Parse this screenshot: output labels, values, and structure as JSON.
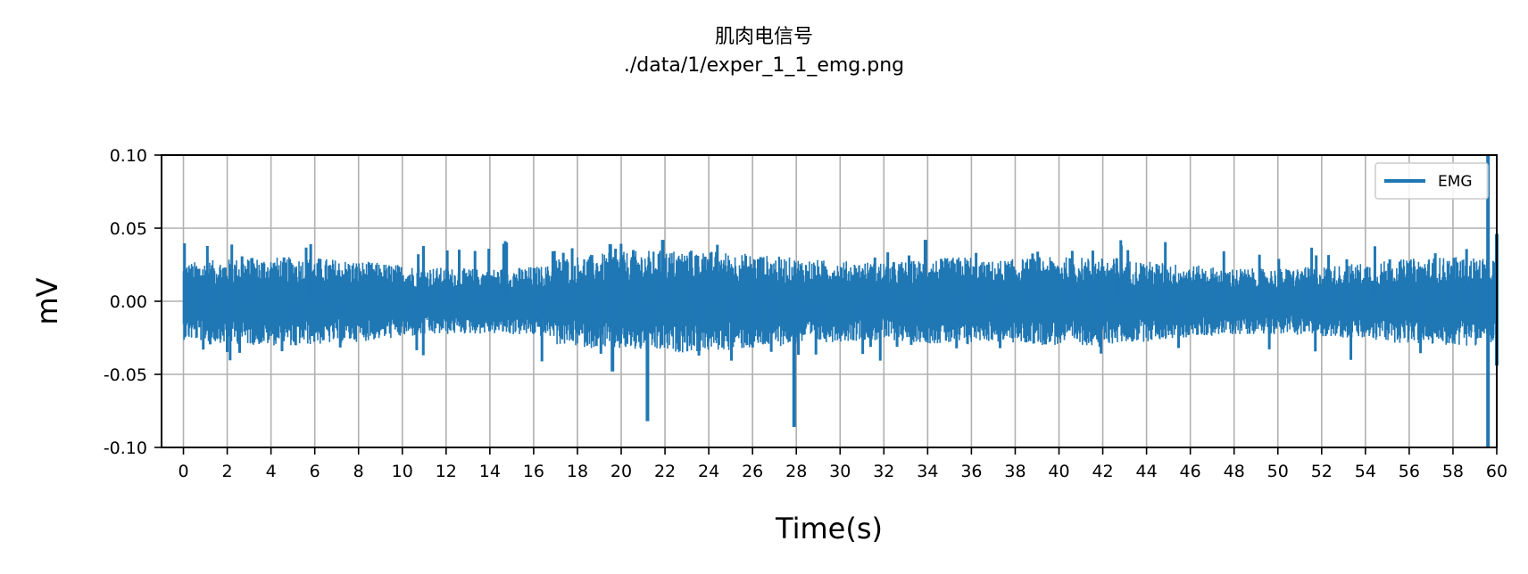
{
  "chart_data": {
    "type": "line",
    "title": "肌肉电信号",
    "subtitle": "./data/1/exper_1_1_emg.png",
    "xlabel": "Time(s)",
    "ylabel": "mV",
    "xlim": [
      -1,
      60
    ],
    "ylim": [
      -0.1,
      0.1
    ],
    "xticks": [
      0,
      2,
      4,
      6,
      8,
      10,
      12,
      14,
      16,
      18,
      20,
      22,
      24,
      26,
      28,
      30,
      32,
      34,
      36,
      38,
      40,
      42,
      44,
      46,
      48,
      50,
      52,
      54,
      56,
      58,
      60
    ],
    "xtick_labels": [
      "0",
      "2",
      "4",
      "6",
      "8",
      "10",
      "12",
      "14",
      "16",
      "18",
      "20",
      "22",
      "24",
      "26",
      "28",
      "30",
      "32",
      "34",
      "36",
      "38",
      "40",
      "42",
      "44",
      "46",
      "48",
      "50",
      "52",
      "54",
      "56",
      "58",
      "60"
    ],
    "yticks": [
      -0.1,
      -0.05,
      0.0,
      0.05,
      0.1
    ],
    "ytick_labels": [
      "-0.10",
      "-0.05",
      "0.00",
      "0.05",
      "0.10"
    ],
    "grid": true,
    "legend": "top-right",
    "series": [
      {
        "name": "EMG",
        "color": "#1f77b4",
        "x_range": [
          0,
          60
        ],
        "baseline_amplitude": 0.022,
        "spikes": [
          {
            "x": 19.6,
            "y": -0.048
          },
          {
            "x": 19.5,
            "y": 0.039
          },
          {
            "x": 21.2,
            "y": -0.082
          },
          {
            "x": 21.9,
            "y": 0.042
          },
          {
            "x": 27.9,
            "y": -0.086
          },
          {
            "x": 33.9,
            "y": 0.042
          },
          {
            "x": 59.6,
            "y": 0.1
          },
          {
            "x": 59.6,
            "y": -0.1
          },
          {
            "x": 60.0,
            "y": 0.046
          },
          {
            "x": 60.0,
            "y": -0.044
          }
        ]
      }
    ]
  }
}
